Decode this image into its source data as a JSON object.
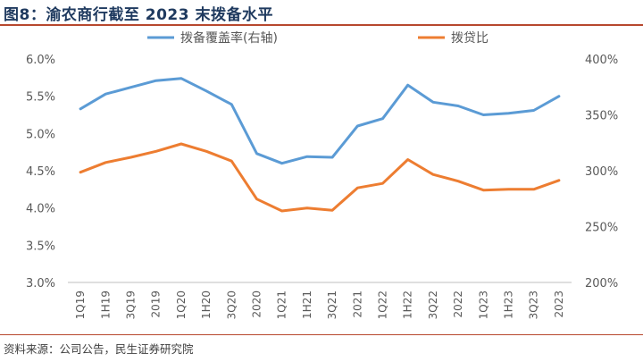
{
  "figure": {
    "title": "图8：渝农商行截至 2023 末拨备水平",
    "source": "资料来源：公司公告，民生证券研究院"
  },
  "chart_data": {
    "type": "line",
    "categories": [
      "1Q19",
      "1H19",
      "3Q19",
      "2019",
      "1Q20",
      "1H20",
      "3Q20",
      "2020",
      "1Q21",
      "1H21",
      "3Q21",
      "2021",
      "1Q22",
      "1H22",
      "3Q22",
      "2022",
      "1Q23",
      "1H23",
      "3Q23",
      "2023"
    ],
    "series": [
      {
        "name": "拨备覆盖率(右轴)",
        "axis": "right",
        "color": "#5b9bd5",
        "values": [
          0.0533,
          0.0553,
          0.0562,
          0.0571,
          0.0574,
          0.0557,
          0.0539,
          0.0473,
          0.046,
          0.0469,
          0.0468,
          0.051,
          0.052,
          0.0565,
          0.0542,
          0.0537,
          0.0525,
          0.0527,
          0.0531,
          0.055
        ],
        "values_right_axis": [
          3.466,
          3.624,
          3.696,
          3.768,
          3.792,
          3.656,
          3.512,
          2.984,
          2.88,
          2.952,
          2.944,
          3.28,
          3.36,
          3.72,
          3.536,
          3.496,
          3.4,
          3.416,
          3.448,
          3.6
        ]
      },
      {
        "name": "拨贷比",
        "axis": "left",
        "color": "#ed7d31",
        "values": [
          0.0448,
          0.0461,
          0.0468,
          0.0476,
          0.0486,
          0.0476,
          0.0463,
          0.0412,
          0.0396,
          0.04,
          0.0397,
          0.0427,
          0.0433,
          0.0465,
          0.0445,
          0.0436,
          0.0424,
          0.0425,
          0.0425,
          0.0437
        ]
      }
    ],
    "y_left": {
      "min": 0.03,
      "max": 0.06,
      "ticks": [
        "3.0%",
        "3.5%",
        "4.0%",
        "4.5%",
        "5.0%",
        "5.5%",
        "6.0%"
      ]
    },
    "y_right": {
      "min": 2.0,
      "max": 4.0,
      "ticks": [
        "200%",
        "250%",
        "300%",
        "350%",
        "400%"
      ]
    },
    "grid": false,
    "legend_position": "top"
  }
}
